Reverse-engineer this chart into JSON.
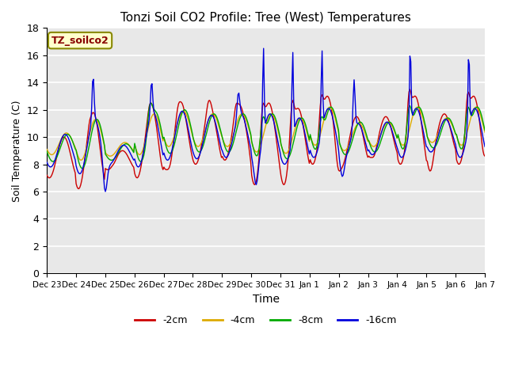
{
  "title": "Tonzi Soil CO2 Profile: Tree (West) Temperatures",
  "xlabel": "Time",
  "ylabel": "Soil Temperature (C)",
  "ylim": [
    0,
    18
  ],
  "yticks": [
    0,
    2,
    4,
    6,
    8,
    10,
    12,
    14,
    16,
    18
  ],
  "legend_label": "TZ_soilco2",
  "series_labels": [
    "-2cm",
    "-4cm",
    "-8cm",
    "-16cm"
  ],
  "series_colors": [
    "#cc0000",
    "#ddaa00",
    "#00aa00",
    "#0000dd"
  ],
  "background_color": "#ffffff",
  "plot_bg_color": "#e8e8e8",
  "grid_color": "#ffffff",
  "x_tick_labels": [
    "Dec 23",
    "Dec 24",
    "Dec 25",
    "Dec 26",
    "Dec 27",
    "Dec 28",
    "Dec 29",
    "Dec 30",
    "Dec 31",
    "Jan 1",
    "Jan 2",
    "Jan 3",
    "Jan 4",
    "Jan 5",
    "Jan 6",
    "Jan 7"
  ],
  "n_points": 480
}
